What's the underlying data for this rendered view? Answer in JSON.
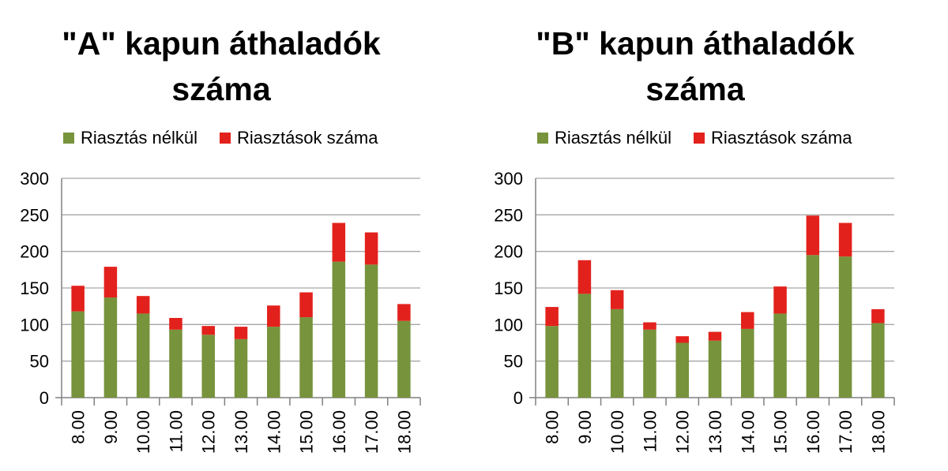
{
  "colors": {
    "green": "#77933c",
    "red": "#e3211c",
    "grid": "#a6a6a6",
    "axis": "#808080"
  },
  "chart_data": [
    {
      "type": "bar",
      "stacked": true,
      "title_lines": [
        "\"A\" kapun áthaladók",
        "száma"
      ],
      "categories": [
        "8.00",
        "9.00",
        "10.00",
        "11.00",
        "12.00",
        "13.00",
        "14.00",
        "15.00",
        "16.00",
        "17.00",
        "18.00"
      ],
      "series": [
        {
          "name": "Riasztás nélkül",
          "color": "#77933c",
          "values": [
            118,
            137,
            115,
            93,
            86,
            80,
            97,
            110,
            186,
            182,
            105
          ]
        },
        {
          "name": "Riasztások száma",
          "color": "#e3211c",
          "values": [
            35,
            42,
            24,
            16,
            12,
            17,
            29,
            34,
            53,
            44,
            23
          ]
        }
      ],
      "ylim": [
        0,
        300
      ],
      "yticks": [
        0,
        50,
        100,
        150,
        200,
        250,
        300
      ],
      "grid": true,
      "legend_position": "top"
    },
    {
      "type": "bar",
      "stacked": true,
      "title_lines": [
        "\"B\" kapun áthaladók",
        "száma"
      ],
      "categories": [
        "8.00",
        "9.00",
        "10.00",
        "11.00",
        "12.00",
        "13.00",
        "14.00",
        "15.00",
        "16.00",
        "17.00",
        "18.00"
      ],
      "series": [
        {
          "name": "Riasztás nélkül",
          "color": "#77933c",
          "values": [
            98,
            142,
            121,
            93,
            75,
            78,
            94,
            115,
            195,
            193,
            102
          ]
        },
        {
          "name": "Riasztások száma",
          "color": "#e3211c",
          "values": [
            26,
            46,
            26,
            10,
            9,
            12,
            23,
            37,
            54,
            46,
            19
          ]
        }
      ],
      "ylim": [
        0,
        300
      ],
      "yticks": [
        0,
        50,
        100,
        150,
        200,
        250,
        300
      ],
      "grid": true,
      "legend_position": "top"
    }
  ]
}
